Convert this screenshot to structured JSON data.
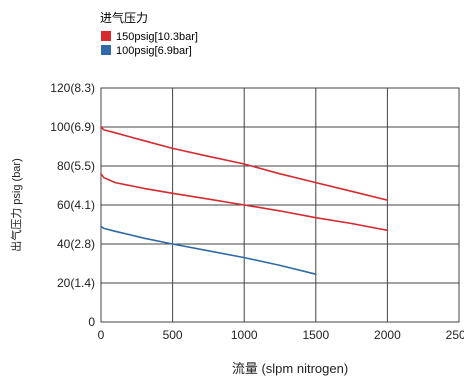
{
  "chart_data": {
    "type": "line",
    "legend_title": "进气压力",
    "legend_placement": "top-left",
    "xlabel": "流量 (slpm nitrogen)",
    "ylabel": "出气压力 psig (bar)",
    "xlim": [
      0,
      2500
    ],
    "ylim": [
      0,
      120
    ],
    "grid": true,
    "x_ticks": [
      {
        "value": 0,
        "label": "0"
      },
      {
        "value": 500,
        "label": "500"
      },
      {
        "value": 1000,
        "label": "1000"
      },
      {
        "value": 1500,
        "label": "1500"
      },
      {
        "value": 2000,
        "label": "2000"
      },
      {
        "value": 2500,
        "label": "2500"
      }
    ],
    "y_ticks": [
      {
        "value": 0,
        "label": "0"
      },
      {
        "value": 20,
        "label": "20(1.4)"
      },
      {
        "value": 40,
        "label": "40(2.8)"
      },
      {
        "value": 60,
        "label": "60(4.1)"
      },
      {
        "value": 80,
        "label": "80(5.5)"
      },
      {
        "value": 100,
        "label": "100(6.9)"
      },
      {
        "value": 120,
        "label": "120(8.3)"
      }
    ],
    "legend": [
      {
        "name": "150psig[10.3bar]",
        "color": "#d62a2f"
      },
      {
        "name": "100psig[6.9bar]",
        "color": "#2f6aa7"
      }
    ],
    "series": [
      {
        "legend_index": 0,
        "color": "#d62a2f",
        "points": [
          [
            0,
            100
          ],
          [
            20,
            98.5
          ],
          [
            100,
            97
          ],
          [
            300,
            93
          ],
          [
            500,
            89
          ],
          [
            750,
            85
          ],
          [
            1000,
            81
          ],
          [
            1250,
            76
          ],
          [
            1500,
            71.5
          ],
          [
            1750,
            67
          ],
          [
            2000,
            62.5
          ]
        ]
      },
      {
        "legend_index": 0,
        "color": "#d62a2f",
        "points": [
          [
            0,
            76
          ],
          [
            20,
            74
          ],
          [
            100,
            71.5
          ],
          [
            300,
            68.5
          ],
          [
            500,
            66
          ],
          [
            750,
            63
          ],
          [
            1000,
            60
          ],
          [
            1250,
            57
          ],
          [
            1500,
            53.5
          ],
          [
            1750,
            50.5
          ],
          [
            2000,
            47
          ]
        ]
      },
      {
        "legend_index": 1,
        "color": "#2f6aa7",
        "points": [
          [
            0,
            49
          ],
          [
            20,
            48
          ],
          [
            100,
            46.5
          ],
          [
            300,
            43
          ],
          [
            500,
            40
          ],
          [
            750,
            36.5
          ],
          [
            1000,
            33
          ],
          [
            1250,
            29
          ],
          [
            1500,
            24.5
          ]
        ]
      }
    ]
  }
}
